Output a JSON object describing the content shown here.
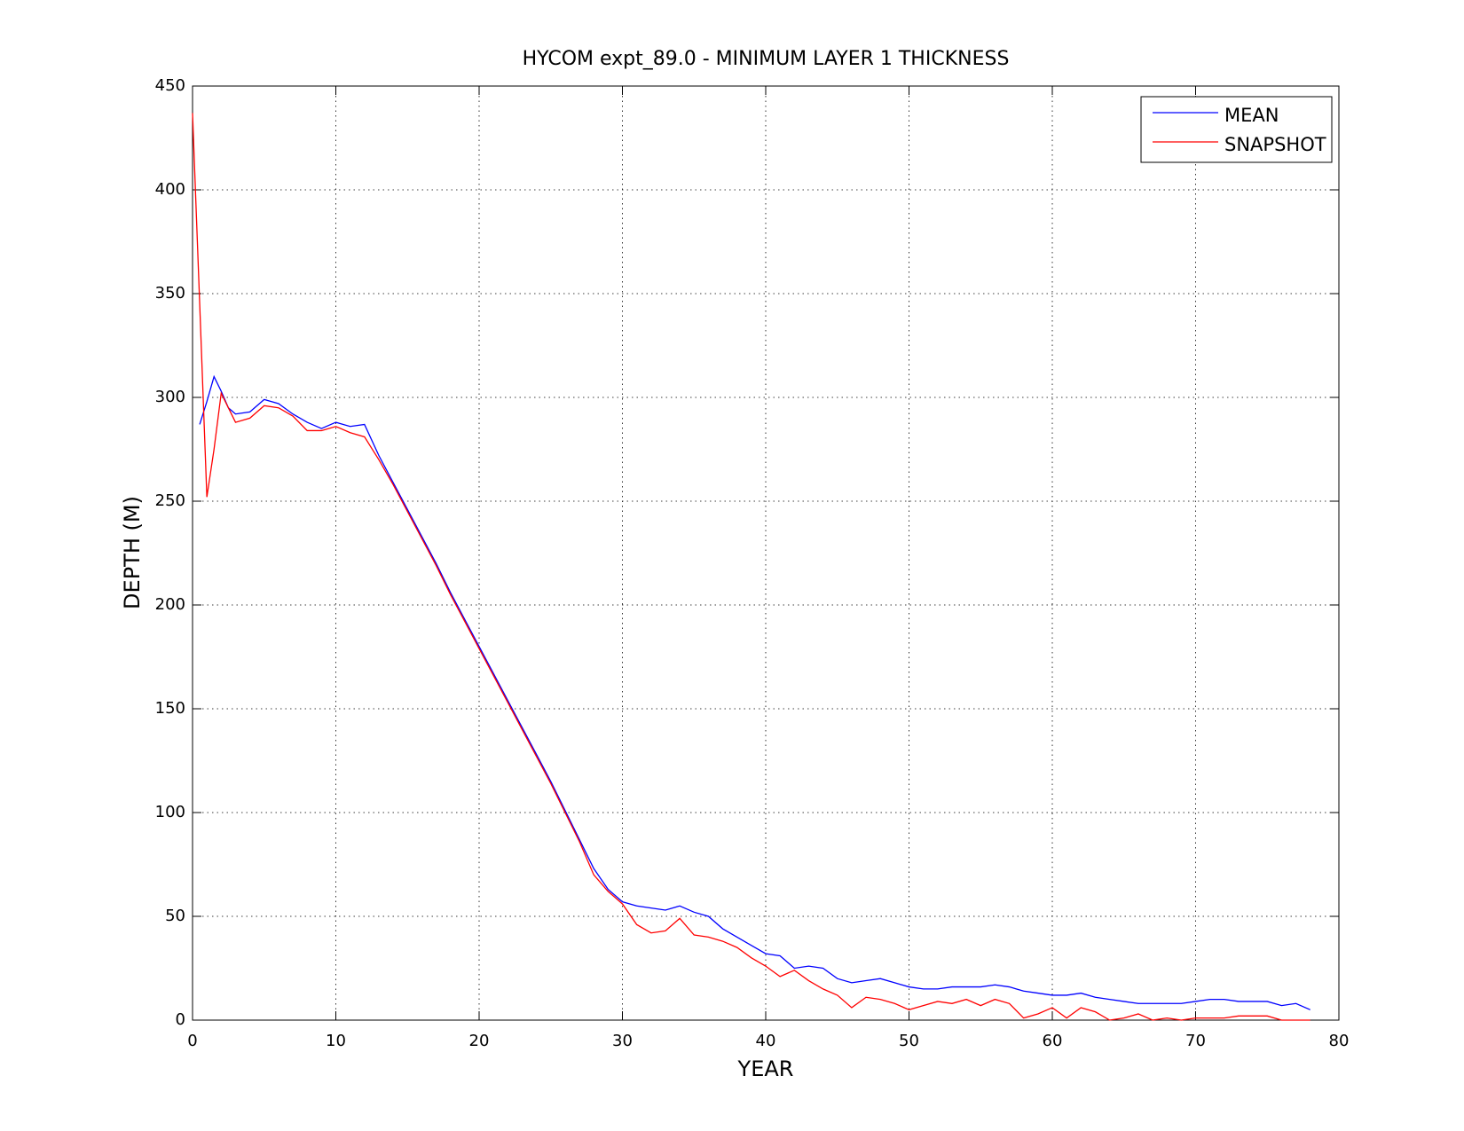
{
  "chart_data": {
    "type": "line",
    "title": "HYCOM expt_89.0 - MINIMUM LAYER 1 THICKNESS",
    "xlabel": "YEAR",
    "ylabel": "DEPTH (M)",
    "x": [
      0,
      0.5,
      1,
      1.5,
      2,
      2.5,
      3,
      4,
      5,
      6,
      7,
      8,
      9,
      10,
      11,
      12,
      13,
      14,
      15,
      16,
      17,
      18,
      19,
      20,
      21,
      22,
      23,
      24,
      25,
      26,
      27,
      28,
      29,
      30,
      31,
      32,
      33,
      34,
      35,
      36,
      37,
      38,
      39,
      40,
      41,
      42,
      43,
      44,
      45,
      46,
      47,
      48,
      49,
      50,
      51,
      52,
      53,
      54,
      55,
      56,
      57,
      58,
      59,
      60,
      61,
      62,
      63,
      64,
      65,
      66,
      67,
      68,
      69,
      70,
      71,
      72,
      73,
      74,
      75,
      76,
      77,
      78
    ],
    "series": [
      {
        "name": "MEAN",
        "color": "#0000ff",
        "values": [
          null,
          287,
          298,
          310,
          303,
          295,
          292,
          293,
          299,
          297,
          292,
          288,
          285,
          288,
          286,
          287,
          272,
          259,
          246,
          233,
          220,
          206,
          193,
          180,
          167,
          154,
          141,
          128,
          115,
          101,
          87,
          73,
          63,
          57,
          55,
          54,
          53,
          55,
          52,
          50,
          44,
          40,
          36,
          32,
          31,
          25,
          26,
          25,
          20,
          18,
          19,
          20,
          18,
          16,
          15,
          15,
          16,
          16,
          16,
          17,
          16,
          14,
          13,
          12,
          12,
          13,
          11,
          10,
          9,
          8,
          8,
          8,
          8,
          9,
          10,
          10,
          9,
          9,
          9,
          7,
          8,
          5
        ]
      },
      {
        "name": "SNAPSHOT",
        "color": "#ff0000",
        "values": [
          437,
          345,
          252,
          275,
          302,
          295,
          288,
          290,
          296,
          295,
          291,
          284,
          284,
          286,
          283,
          281,
          270,
          258,
          245,
          232,
          219,
          205,
          192,
          179,
          166,
          153,
          140,
          127,
          114,
          100,
          86,
          70,
          62,
          56,
          46,
          42,
          43,
          49,
          41,
          40,
          38,
          35,
          30,
          26,
          21,
          24,
          19,
          15,
          12,
          6,
          11,
          10,
          8,
          5,
          7,
          9,
          8,
          10,
          7,
          10,
          8,
          1,
          3,
          6,
          1,
          6,
          4,
          0,
          1,
          3,
          0,
          1,
          0,
          1,
          1,
          1,
          2,
          2,
          2,
          0,
          0,
          0
        ]
      }
    ],
    "xlim": [
      0,
      80
    ],
    "xticks": [
      0,
      10,
      20,
      30,
      40,
      50,
      60,
      70,
      80
    ],
    "ylim": [
      0,
      450
    ],
    "yticks": [
      0,
      50,
      100,
      150,
      200,
      250,
      300,
      350,
      400,
      450
    ],
    "grid": true,
    "legend": "northeast"
  }
}
